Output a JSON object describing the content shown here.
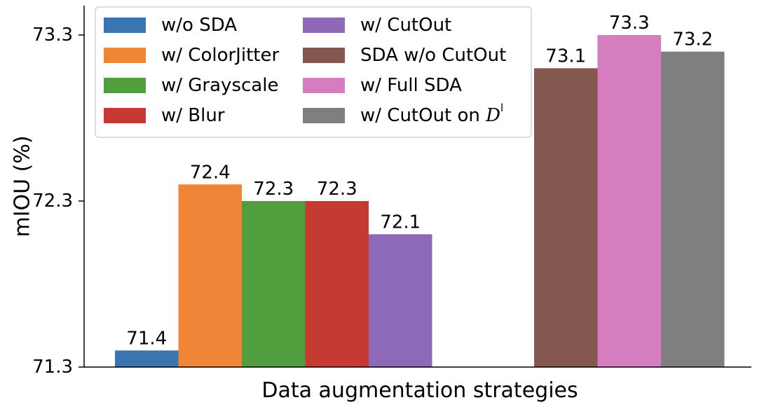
{
  "chart_data": {
    "type": "bar",
    "ylabel": "mIOU (%)",
    "xlabel": "Data augmentation strategies",
    "ylim": [
      71.3,
      73.55
    ],
    "yticks": [
      {
        "value": 71.3,
        "label": "71.3"
      },
      {
        "value": 72.3,
        "label": "72.3"
      },
      {
        "value": 73.3,
        "label": "73.3"
      }
    ],
    "grid": false,
    "legend_position": "top-left",
    "series": [
      {
        "name": "w/o SDA",
        "value": 71.4,
        "label": "71.4",
        "color": "#3A75AF",
        "group": 0
      },
      {
        "name": "w/ ColorJitter",
        "value": 72.4,
        "label": "72.4",
        "color": "#EF8536",
        "group": 0
      },
      {
        "name": "w/ Grayscale",
        "value": 72.3,
        "label": "72.3",
        "color": "#519E3E",
        "group": 0
      },
      {
        "name": "w/ Blur",
        "value": 72.3,
        "label": "72.3",
        "color": "#C53A32",
        "group": 0
      },
      {
        "name": "w/ CutOut",
        "value": 72.1,
        "label": "72.1",
        "color": "#8D69B8",
        "group": 0
      },
      {
        "name": "SDA w/o CutOut",
        "value": 73.1,
        "label": "73.1",
        "color": "#84584E",
        "group": 1
      },
      {
        "name": "w/ Full SDA",
        "value": 73.3,
        "label": "73.3",
        "color": "#D57DBF",
        "group": 1
      },
      {
        "name": "w/ CutOut on ",
        "name_suffix": "D",
        "name_sup": "l",
        "value": 73.2,
        "label": "73.2",
        "color": "#7F7F7F",
        "group": 1
      }
    ]
  }
}
